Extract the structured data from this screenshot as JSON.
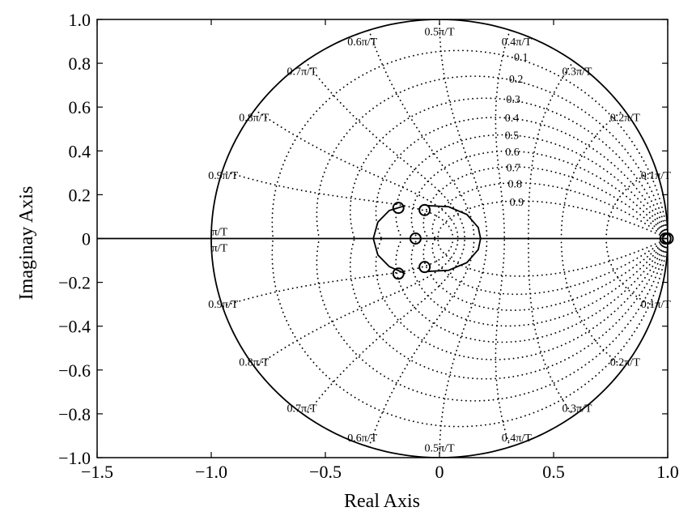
{
  "chart_data": {
    "type": "scatter",
    "xlabel": "Real Axis",
    "ylabel": "Imaginay Axis",
    "xlim": [
      -1.5,
      1.0
    ],
    "ylim": [
      -1.0,
      1.0
    ],
    "x_ticks": [
      {
        "value": -1.5,
        "label": "−1.5"
      },
      {
        "value": -1.0,
        "label": "−1.0"
      },
      {
        "value": -0.5,
        "label": "−0.5"
      },
      {
        "value": 0,
        "label": "0"
      },
      {
        "value": 0.5,
        "label": "0.5"
      },
      {
        "value": 1.0,
        "label": "1.0"
      }
    ],
    "y_ticks": [
      {
        "value": 1.0,
        "label": "1.0"
      },
      {
        "value": 0.8,
        "label": "0.8"
      },
      {
        "value": 0.6,
        "label": "0.6"
      },
      {
        "value": 0.4,
        "label": "0.4"
      },
      {
        "value": 0.2,
        "label": "0.2"
      },
      {
        "value": 0,
        "label": "0"
      },
      {
        "value": -0.2,
        "label": "−0.2"
      },
      {
        "value": -0.4,
        "label": "−0.4"
      },
      {
        "value": -0.6,
        "label": "−0.6"
      },
      {
        "value": -0.8,
        "label": "−0.8"
      },
      {
        "value": -1.0,
        "label": "−1.0"
      }
    ],
    "grid": "zgrid",
    "damping_values": [
      0.1,
      0.2,
      0.3,
      0.4,
      0.5,
      0.6,
      0.7,
      0.8,
      0.9
    ],
    "damping_labels": [
      {
        "value": 0.1,
        "label": "0.1"
      },
      {
        "value": 0.2,
        "label": "0.2"
      },
      {
        "value": 0.3,
        "label": "0.3"
      },
      {
        "value": 0.4,
        "label": "0.4"
      },
      {
        "value": 0.5,
        "label": "0.5"
      },
      {
        "value": 0.6,
        "label": "0.6"
      },
      {
        "value": 0.7,
        "label": "0.7"
      },
      {
        "value": 0.8,
        "label": "0.8"
      },
      {
        "value": 0.9,
        "label": "0.9"
      }
    ],
    "frequency_labels": [
      {
        "value": 0.1,
        "label": "0.1π/T"
      },
      {
        "value": 0.2,
        "label": "0.2π/T"
      },
      {
        "value": 0.3,
        "label": "0.3π/T"
      },
      {
        "value": 0.4,
        "label": "0.4π/T"
      },
      {
        "value": 0.5,
        "label": "0.5π/T"
      },
      {
        "value": 0.6,
        "label": "0.6π/T"
      },
      {
        "value": 0.7,
        "label": "0.7π/T"
      },
      {
        "value": 0.8,
        "label": "0.8π/T"
      },
      {
        "value": 0.9,
        "label": "0.9π/T"
      },
      {
        "value": 1.0,
        "label": "π/T"
      }
    ],
    "zeros": [
      {
        "x": -0.18,
        "y": 0.14
      },
      {
        "x": -0.18,
        "y": -0.16
      },
      {
        "x": -0.065,
        "y": 0.13
      },
      {
        "x": -0.065,
        "y": -0.13
      },
      {
        "x": -0.105,
        "y": 0.0
      },
      {
        "x": 0.99,
        "y": 0.0
      },
      {
        "x": 1.0,
        "y": 0.0
      }
    ],
    "inner_curve": [
      [
        -0.15,
        0.15
      ],
      [
        -0.22,
        0.128
      ],
      [
        -0.27,
        0.075
      ],
      [
        -0.29,
        0.0
      ],
      [
        -0.27,
        -0.075
      ],
      [
        -0.22,
        -0.128
      ],
      [
        -0.15,
        -0.16
      ],
      [
        -0.05,
        0.15
      ],
      [
        0.04,
        0.145
      ],
      [
        0.12,
        0.11
      ],
      [
        0.17,
        0.05
      ],
      [
        0.18,
        0.0
      ],
      [
        0.17,
        -0.05
      ],
      [
        0.12,
        -0.11
      ],
      [
        0.04,
        -0.145
      ],
      [
        -0.05,
        -0.15
      ]
    ],
    "outer_boundary": "unit circle"
  }
}
